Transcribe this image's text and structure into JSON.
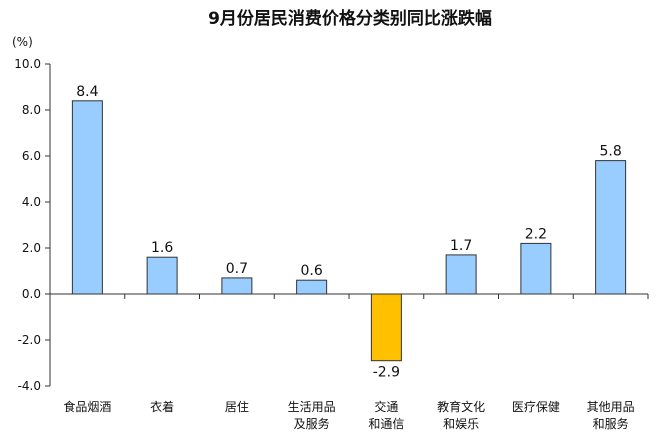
{
  "chart_data": {
    "type": "bar",
    "title": "9月份居民消费价格分类别同比涨跌幅",
    "unit_label": "(%)",
    "ylim": [
      -4.0,
      10.0
    ],
    "yticks": [
      10.0,
      8.0,
      6.0,
      4.0,
      2.0,
      0.0,
      -2.0,
      -4.0
    ],
    "ytick_labels": [
      "10.0",
      "8.0",
      "6.0",
      "4.0",
      "2.0",
      "0.0",
      "-2.0",
      "-4.0"
    ],
    "grid": false,
    "categories": [
      [
        "食品烟酒"
      ],
      [
        "衣着"
      ],
      [
        "居住"
      ],
      [
        "生活用品",
        "及服务"
      ],
      [
        "交通",
        "和通信"
      ],
      [
        "教育文化",
        "和娱乐"
      ],
      [
        "医疗保健"
      ],
      [
        "其他用品",
        "和服务"
      ]
    ],
    "values": [
      8.4,
      1.6,
      0.7,
      0.6,
      -2.9,
      1.7,
      2.2,
      5.8
    ],
    "value_labels": [
      "8.4",
      "1.6",
      "0.7",
      "0.6",
      "-2.9",
      "1.7",
      "2.2",
      "5.8"
    ],
    "colors": {
      "positive_fill": "#99CCFF",
      "negative_fill": "#FFC000",
      "bar_stroke": "#333333",
      "axis": "#333333"
    }
  }
}
